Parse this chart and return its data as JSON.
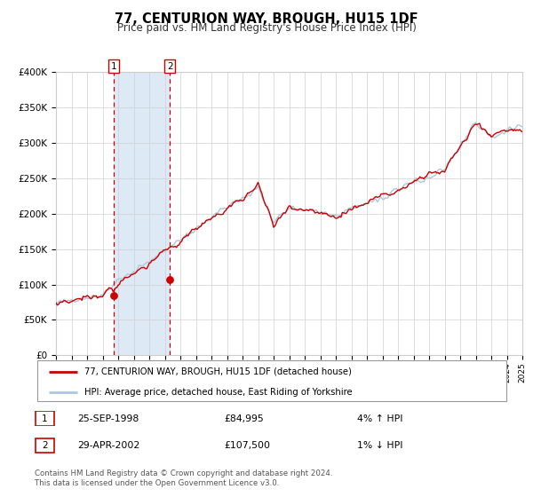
{
  "title": "77, CENTURION WAY, BROUGH, HU15 1DF",
  "subtitle": "Price paid vs. HM Land Registry's House Price Index (HPI)",
  "property_label": "77, CENTURION WAY, BROUGH, HU15 1DF (detached house)",
  "hpi_label": "HPI: Average price, detached house, East Riding of Yorkshire",
  "footer1": "Contains HM Land Registry data © Crown copyright and database right 2024.",
  "footer2": "This data is licensed under the Open Government Licence v3.0.",
  "sale1_date": "25-SEP-1998",
  "sale1_price": "£84,995",
  "sale1_hpi": "4% ↑ HPI",
  "sale2_date": "29-APR-2002",
  "sale2_price": "£107,500",
  "sale2_hpi": "1% ↓ HPI",
  "sale1_year": 1998.73,
  "sale2_year": 2002.33,
  "sale1_value": 84995,
  "sale2_value": 107500,
  "property_color": "#cc0000",
  "hpi_color": "#aac8e0",
  "shading_color": "#ddeaf5",
  "vline_color": "#cc0000",
  "ylim": [
    0,
    400000
  ],
  "xlim_start": 1995,
  "xlim_end": 2025,
  "yticks": [
    0,
    50000,
    100000,
    150000,
    200000,
    250000,
    300000,
    350000,
    400000
  ],
  "ytick_labels": [
    "£0",
    "£50K",
    "£100K",
    "£150K",
    "£200K",
    "£250K",
    "£300K",
    "£350K",
    "£400K"
  ],
  "fig_width": 6.0,
  "fig_height": 5.6,
  "dpi": 100
}
